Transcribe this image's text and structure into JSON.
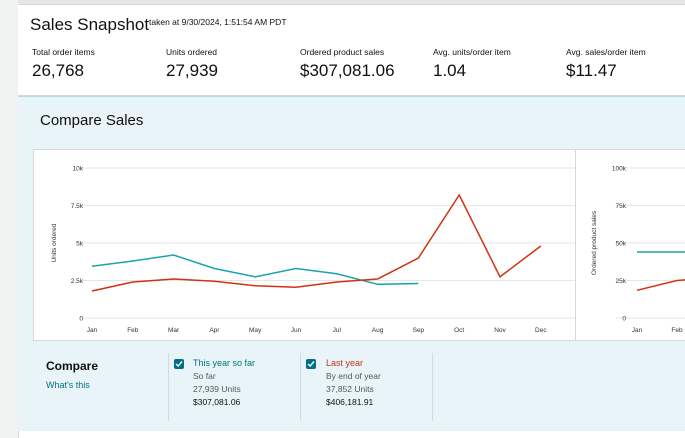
{
  "header": {
    "title": "Sales Snapshot",
    "taken": "taken at 9/30/2024, 1:51:54 AM PDT"
  },
  "metrics": [
    {
      "label": "Total order items",
      "value": "26,768"
    },
    {
      "label": "Units ordered",
      "value": "27,939"
    },
    {
      "label": "Ordered product sales",
      "value": "$307,081.06"
    },
    {
      "label": "Avg. units/order item",
      "value": "1.04"
    },
    {
      "label": "Avg. sales/order item",
      "value": "$11.47"
    }
  ],
  "compare_sales": {
    "title": "Compare Sales",
    "compare_label": "Compare",
    "whats_this": "What's this",
    "this_year": {
      "name": "This year so far",
      "sub": "So far",
      "units": "27,939 Units",
      "sales": "$307,081.06",
      "color": "#1aa3a8"
    },
    "last_year": {
      "name": "Last year",
      "sub": "By end of year",
      "units": "37,852 Units",
      "sales": "$406,181.91",
      "color": "#d13212"
    }
  },
  "chart_data": [
    {
      "type": "line",
      "ylabel": "Units ordered",
      "yticks": [
        "0",
        "2.5k",
        "5k",
        "7.5k",
        "10k"
      ],
      "ylim": [
        0,
        10000
      ],
      "categories": [
        "Jan",
        "Feb",
        "Mar",
        "Apr",
        "May",
        "Jun",
        "Jul",
        "Aug",
        "Sep",
        "Oct",
        "Nov",
        "Dec"
      ],
      "series": [
        {
          "name": "This year so far",
          "color": "#1aa3a8",
          "values": [
            3450,
            3800,
            4200,
            3300,
            2750,
            3300,
            2950,
            2250,
            2300,
            null,
            null,
            null
          ]
        },
        {
          "name": "Last year",
          "color": "#d13212",
          "values": [
            1800,
            2400,
            2600,
            2450,
            2150,
            2050,
            2400,
            2600,
            4000,
            8200,
            2750,
            4800
          ]
        }
      ]
    },
    {
      "type": "line",
      "ylabel": "Ordered product sales",
      "yticks": [
        "0",
        "25k",
        "50k",
        "75k",
        "100k"
      ],
      "ylim": [
        0,
        100000
      ],
      "categories": [
        "Jan",
        "Feb"
      ],
      "series": [
        {
          "name": "This year so far",
          "color": "#1aa3a8",
          "values": [
            44000,
            44000
          ]
        },
        {
          "name": "Last year",
          "color": "#d13212",
          "values": [
            18500,
            25000
          ]
        }
      ]
    }
  ]
}
